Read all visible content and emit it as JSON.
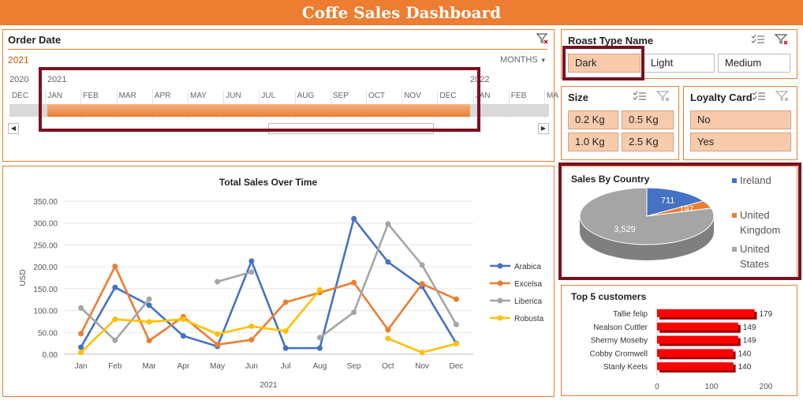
{
  "title": "Coffe Sales Dashboard",
  "timeline": {
    "title": "Order Date",
    "year_label": "2021",
    "period": "MONTHS",
    "years": [
      "2020",
      "2021",
      "2022"
    ],
    "months": [
      "DEC",
      "JAN",
      "FEB",
      "MAR",
      "APR",
      "MAY",
      "JUN",
      "JUL",
      "AUG",
      "SEP",
      "OCT",
      "NOV",
      "DEC",
      "JAN",
      "FEB",
      "MA"
    ],
    "selected_fraction": 1.0
  },
  "roast": {
    "title": "Roast Type Name",
    "items": [
      "Dark",
      "Light",
      "Medium"
    ],
    "selected": "Dark"
  },
  "size": {
    "title": "Size",
    "items": [
      "0.2 Kg",
      "0.5 Kg",
      "1.0 Kg",
      "2.5 Kg"
    ]
  },
  "loyalty": {
    "title": "Loyalty Card",
    "items": [
      "No",
      "Yes"
    ]
  },
  "colors": {
    "accent": "#ED7D31",
    "selected": "#F8CBAD",
    "frame": "#7B1020",
    "bar": "#FF0000"
  },
  "chart_data": [
    {
      "type": "line",
      "title": "Total Sales Over Time",
      "xlabel": "2021",
      "ylabel": "USD",
      "categories": [
        "Jan",
        "Feb",
        "Mar",
        "Apr",
        "May",
        "Jun",
        "Jul",
        "Aug",
        "Sep",
        "Oct",
        "Nov",
        "Dec"
      ],
      "ylim": [
        0,
        350
      ],
      "yticks": [
        "0.00",
        "50.00",
        "100.00",
        "150.00",
        "200.00",
        "250.00",
        "300.00",
        "350.00"
      ],
      "legend": "right",
      "series": [
        {
          "name": "Arabica",
          "color": "#4472C4",
          "values": [
            16,
            153,
            112,
            42,
            18,
            213,
            14,
            14,
            310,
            211,
            155,
            25
          ]
        },
        {
          "name": "Excelsa",
          "color": "#ED7D31",
          "values": [
            47,
            201,
            31,
            86,
            22,
            33,
            119,
            141,
            164,
            56,
            161,
            126
          ]
        },
        {
          "name": "Liberica",
          "color": "#A5A5A5",
          "values": [
            106,
            32,
            126,
            null,
            166,
            188,
            null,
            38,
            96,
            298,
            204,
            68
          ]
        },
        {
          "name": "Robusta",
          "color": "#FFC000",
          "values": [
            4,
            80,
            74,
            80,
            46,
            64,
            53,
            147,
            null,
            36,
            4,
            24
          ]
        }
      ]
    },
    {
      "type": "pie",
      "title": "Sales By Country",
      "legend": "right",
      "slices": [
        {
          "label": "Ireland",
          "value": 711,
          "color": "#4472C4"
        },
        {
          "label": "United Kingdom",
          "value": 197,
          "color": "#ED7D31"
        },
        {
          "label": "United States",
          "value": 3529,
          "color": "#A5A5A5"
        }
      ],
      "value_labels": [
        "711",
        "197",
        "3,529"
      ]
    },
    {
      "type": "bar",
      "orientation": "horizontal",
      "title": "Top 5 customers",
      "categories": [
        "Tallie felip",
        "Nealson Cuttler",
        "Shermy Moseby",
        "Cobby Cromwell",
        "Stanly Keets"
      ],
      "values": [
        179,
        149,
        149,
        140,
        140
      ],
      "xlim": [
        0,
        200
      ],
      "xticks": [
        "0",
        "100",
        "200"
      ]
    }
  ]
}
